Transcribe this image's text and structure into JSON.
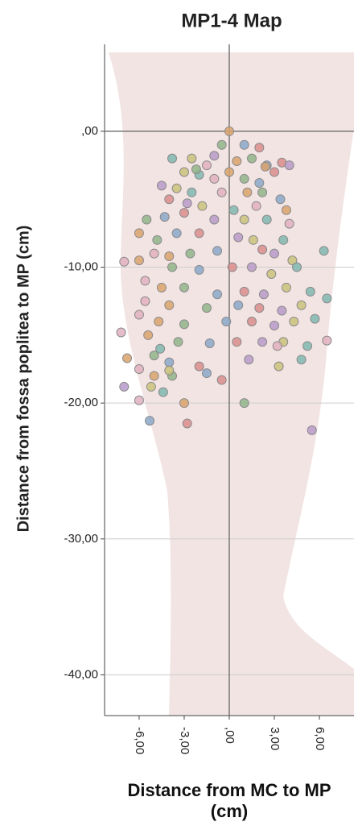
{
  "chart_data": {
    "type": "scatter",
    "title": "MP1-4 Map",
    "x_label": "Distance from MC to MP (cm)",
    "y_label": "Distance from fossa poplitea to MP (cm)",
    "xlim": [
      -8.3,
      8.3
    ],
    "ylim": [
      -43,
      6.4
    ],
    "xticks": [
      {
        "value": -6,
        "label": "-6,00"
      },
      {
        "value": -3,
        "label": "-3,00"
      },
      {
        "value": 0,
        "label": ",00"
      },
      {
        "value": 3,
        "label": "3,00"
      },
      {
        "value": 6,
        "label": "6,00"
      }
    ],
    "yticks": [
      {
        "value": 0,
        "label": ",00"
      },
      {
        "value": -10,
        "label": "-10,00"
      },
      {
        "value": -20,
        "label": "-20,00"
      },
      {
        "value": -30,
        "label": "-30,00"
      },
      {
        "value": -40,
        "label": "-40,00"
      }
    ],
    "grid": true,
    "zero_lines": true,
    "point_colors": [
      "#d9a36b",
      "#8fb58a",
      "#8aa8c9",
      "#d98c8c",
      "#b79ac9",
      "#c9c27a",
      "#7fb8b0",
      "#e0b0c0"
    ],
    "x": [
      0,
      -0.5,
      1,
      2,
      -1,
      -2.5,
      -3.8,
      -1.5,
      0.5,
      1.5,
      2.5,
      3.5,
      4,
      -3,
      -2,
      -1,
      0,
      1,
      2,
      3,
      -4.5,
      -3.5,
      -2.5,
      -0.5,
      1.2,
      2.2,
      3.4,
      -4,
      -2.8,
      -1.8,
      0.3,
      1.8,
      3.8,
      -5.5,
      -4.3,
      -3,
      -1,
      1,
      2.5,
      4,
      -6,
      -4.8,
      -3.5,
      -2,
      0.6,
      1.6,
      3.6,
      -5,
      -4,
      -2.6,
      -0.8,
      2.2,
      3,
      4.2,
      6.3,
      -7,
      -6,
      -3.8,
      -2,
      0.2,
      1.5,
      2.8,
      4.5,
      -5.6,
      -4.5,
      -3,
      -0.8,
      1,
      2.3,
      3.8,
      5.4,
      -5.6,
      -4,
      -1.5,
      0.6,
      2,
      3.5,
      4.8,
      6.5,
      -6,
      -4.7,
      -3,
      -0.2,
      1.5,
      3,
      4.3,
      5.7,
      -7.2,
      -5.4,
      -3.4,
      -1.3,
      0.5,
      2.2,
      3.6,
      5.2,
      6.5,
      -6.8,
      -5,
      -4,
      -2,
      1.3,
      3.3,
      4.8,
      -6,
      -5,
      -3.8,
      -1.5,
      -0.5,
      -7,
      -5.2,
      -4.4,
      -6,
      -3,
      1,
      -5.3,
      -2.8,
      5.5,
      -4,
      -4.6,
      3.2,
      2.4,
      -2.2
    ],
    "values": [
      0,
      -1,
      -1,
      -1.2,
      -1.8,
      -2,
      -2,
      -2.5,
      -2.2,
      -2,
      -2.5,
      -2.3,
      -2.5,
      -3,
      -3.2,
      -3.5,
      -3,
      -3.5,
      -3.8,
      -3,
      -4,
      -4.2,
      -4.5,
      -4.5,
      -4.5,
      -4.5,
      -5,
      -5,
      -5.3,
      -5.5,
      -5.8,
      -5.5,
      -5.8,
      -6.5,
      -6.3,
      -6,
      -6.5,
      -6.5,
      -6.5,
      -6.8,
      -7.5,
      -8,
      -7.5,
      -7.5,
      -7.8,
      -8,
      -8,
      -9,
      -9.2,
      -9,
      -8.8,
      -8.7,
      -9,
      -9.5,
      -8.8,
      -9.6,
      -9.5,
      -10,
      -10.2,
      -10,
      -10,
      -10.5,
      -10,
      -11,
      -11.5,
      -11.5,
      -12,
      -11.8,
      -12,
      -11.5,
      -11.8,
      -12.5,
      -12.8,
      -13,
      -12.8,
      -13,
      -13.2,
      -12.8,
      -12.3,
      -13.5,
      -14,
      -14.2,
      -14,
      -14,
      -14.3,
      -14,
      -13.8,
      -14.8,
      -15,
      -15.5,
      -15.6,
      -15.5,
      -15.5,
      -15.5,
      -15.8,
      -15.4,
      -16.7,
      -16.5,
      -17,
      -17.3,
      -16.8,
      -17.3,
      -16.8,
      -17.5,
      -18,
      -18,
      -17.8,
      -18.3,
      -18.8,
      -18.8,
      -19.2,
      -19.8,
      -20,
      -20,
      -21.3,
      -21.5,
      -22,
      -17.6,
      -16,
      -15.8,
      -2.6,
      -2.8
    ]
  }
}
